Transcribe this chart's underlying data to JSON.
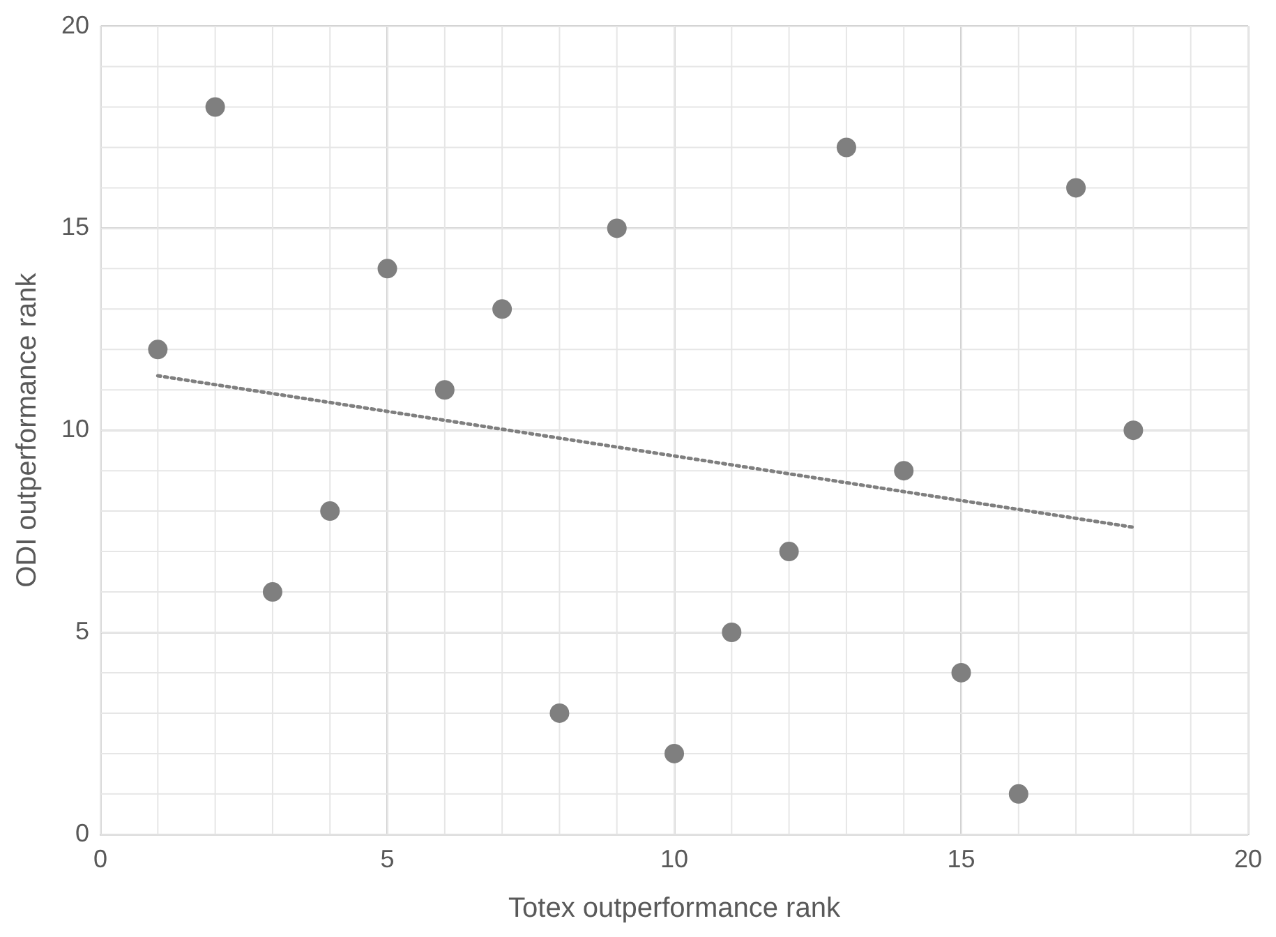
{
  "chart_data": {
    "type": "scatter",
    "xlabel": "Totex outperformance rank",
    "ylabel": "ODI outperformance rank",
    "xlim": [
      0,
      20
    ],
    "xticks": [
      0,
      5,
      10,
      15,
      20
    ],
    "ylim": [
      0,
      20
    ],
    "yticks": [
      0,
      5,
      10,
      15,
      20
    ],
    "grid": true,
    "legend": false,
    "series": [
      {
        "color": "#7f7f7f",
        "marker": "circle",
        "x": [
          1,
          2,
          3,
          4,
          5,
          6,
          7,
          8,
          9,
          10,
          11,
          12,
          13,
          14,
          15,
          16,
          17,
          18
        ],
        "values": [
          12,
          18,
          6,
          8,
          14,
          11,
          13,
          3,
          15,
          2,
          5,
          7,
          17,
          9,
          4,
          1,
          16,
          10
        ]
      },
      {
        "type": "line",
        "color": "#7f7f7f",
        "line_style": "dotted",
        "marker": "none",
        "x": [
          1,
          18
        ],
        "values": [
          11.35,
          7.6
        ]
      }
    ]
  }
}
